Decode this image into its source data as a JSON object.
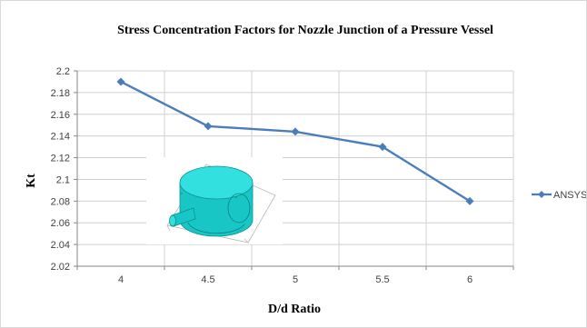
{
  "chart_data": {
    "type": "line",
    "title": "Stress Concentration Factors for Nozzle Junction of a Pressure Vessel",
    "xlabel": "D/d Ratio",
    "ylabel": "Kt",
    "categories": [
      "4",
      "4.5",
      "5",
      "5.5",
      "6"
    ],
    "series": [
      {
        "name": "ANSYS",
        "values": [
          2.19,
          2.149,
          2.144,
          2.13,
          2.08
        ],
        "color": "#4a7ebb"
      }
    ],
    "ylim": [
      2.02,
      2.2
    ],
    "yticks": [
      "2.02",
      "2.04",
      "2.06",
      "2.08",
      "2.1",
      "2.12",
      "2.14",
      "2.16",
      "2.18",
      "2.2"
    ],
    "grid": true,
    "legend": "right",
    "inset": "pressure-vessel-model"
  }
}
